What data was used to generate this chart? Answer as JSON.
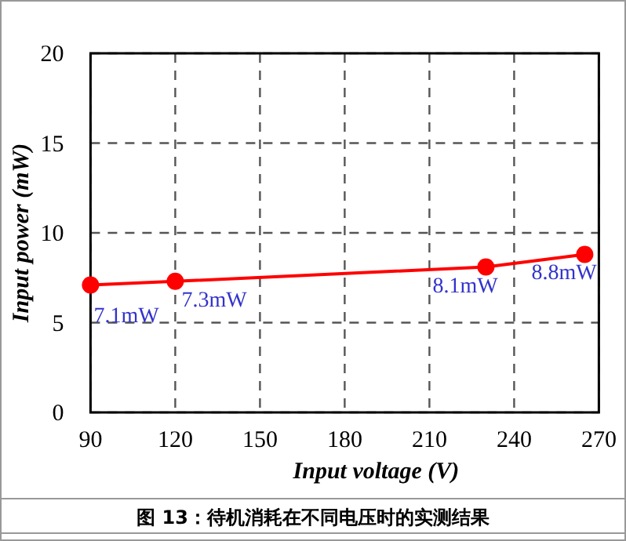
{
  "chart_data": {
    "type": "line",
    "xlabel": "Input voltage (V)",
    "ylabel": "Input power (mW)",
    "x": [
      90,
      120,
      230,
      265
    ],
    "series": [
      {
        "color": "#ff0000",
        "values": [
          7.1,
          7.3,
          8.1,
          8.8
        ]
      }
    ],
    "value_labels": [
      "7.1mW",
      "7.3mW",
      "8.1mW",
      "8.8mW"
    ],
    "xlim": [
      90,
      270
    ],
    "xticks": [
      90,
      120,
      150,
      180,
      210,
      240,
      270
    ],
    "ylim": [
      0,
      20
    ],
    "yticks": [
      0,
      5,
      10,
      15,
      20
    ],
    "grid": true,
    "marker": "circle",
    "line_style": "solid",
    "annotations": [
      "图 13：待机消耗在不同电压时的实测结果"
    ]
  }
}
